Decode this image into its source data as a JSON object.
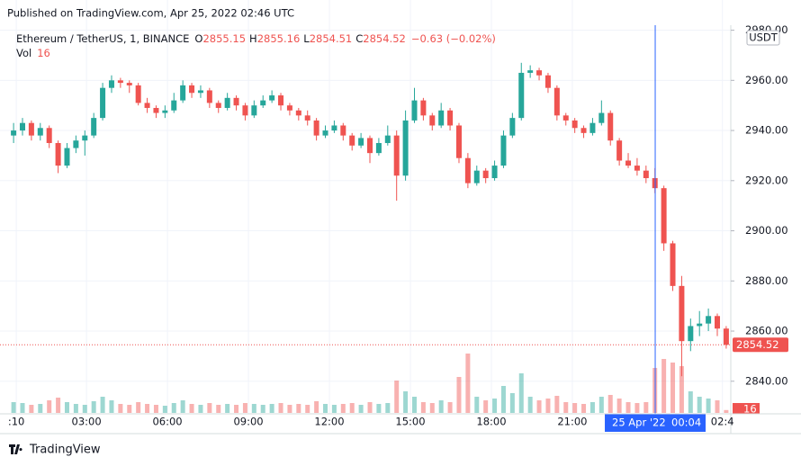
{
  "chart_data": {
    "type": "candlestick",
    "published": "Published on TradingView.com, Apr 25, 2022 02:46 UTC",
    "symbol": "Ethereum / TetherUS, 1, BINANCE",
    "legend": {
      "o_label": "O",
      "o": 2855.15,
      "h_label": "H",
      "h": 2855.16,
      "l_label": "L",
      "l": 2854.51,
      "c_label": "C",
      "c": 2854.52,
      "change": "−0.63 (−0.02%)"
    },
    "vol_label": "Vol",
    "vol_last": 16,
    "currency": "USDT",
    "last_price": 2854.52,
    "crosshair": {
      "x": 24.07,
      "date": "25 Apr '22",
      "time": "00:04"
    },
    "brand": "TradingView",
    "up_color": "#26a69a",
    "down_color": "#ef5350",
    "crosshair_color": "#2962ff",
    "grid": true,
    "xlim": [
      0.13,
      26.87
    ],
    "ylim": [
      2827,
      2982
    ],
    "volume_lim": [
      0,
      500
    ],
    "xticks": [
      {
        "value": 0.4,
        "label": ":10"
      },
      {
        "value": 3,
        "label": "03:00"
      },
      {
        "value": 6,
        "label": "06:00"
      },
      {
        "value": 9,
        "label": "09:00"
      },
      {
        "value": 12,
        "label": "12:00"
      },
      {
        "value": 15,
        "label": "15:00"
      },
      {
        "value": 18,
        "label": "18:00"
      },
      {
        "value": 21,
        "label": "21:00"
      },
      {
        "value": 26.56,
        "label": "02:4"
      }
    ],
    "yticks": [
      {
        "value": 2840,
        "label": "2840.00"
      },
      {
        "value": 2860,
        "label": "2860.00"
      },
      {
        "value": 2880,
        "label": "2880.00"
      },
      {
        "value": 2900,
        "label": "2900.00"
      },
      {
        "value": 2920,
        "label": "2920.00"
      },
      {
        "value": 2940,
        "label": "2940.00"
      },
      {
        "value": 2960,
        "label": "2960.00"
      },
      {
        "value": 2980,
        "label": "2980.00"
      }
    ],
    "x": [
      0.3,
      0.63,
      0.96,
      1.29,
      1.62,
      1.95,
      2.28,
      2.61,
      2.94,
      3.27,
      3.6,
      3.93,
      4.26,
      4.59,
      4.92,
      5.25,
      5.58,
      5.91,
      6.24,
      6.57,
      6.9,
      7.23,
      7.56,
      7.89,
      8.22,
      8.55,
      8.88,
      9.21,
      9.54,
      9.87,
      10.2,
      10.53,
      10.86,
      11.19,
      11.52,
      11.85,
      12.18,
      12.51,
      12.84,
      13.17,
      13.5,
      13.83,
      14.16,
      14.49,
      14.82,
      15.15,
      15.48,
      15.81,
      16.14,
      16.47,
      16.8,
      17.13,
      17.46,
      17.79,
      18.12,
      18.45,
      18.78,
      19.11,
      19.44,
      19.77,
      20.1,
      20.43,
      20.76,
      21.09,
      21.42,
      21.75,
      22.08,
      22.41,
      22.74,
      23.07,
      23.4,
      23.73,
      24.06,
      24.39,
      24.72,
      25.05,
      25.38,
      25.71,
      26.04,
      26.37,
      26.7
    ],
    "ohlc": [
      [
        2938,
        2943,
        2935,
        2940
      ],
      [
        2940,
        2945,
        2938,
        2943
      ],
      [
        2943,
        2944,
        2936,
        2938
      ],
      [
        2938,
        2943,
        2936,
        2941
      ],
      [
        2941,
        2942,
        2933,
        2935
      ],
      [
        2935,
        2936,
        2923,
        2926
      ],
      [
        2926,
        2935,
        2925,
        2933
      ],
      [
        2933,
        2938,
        2931,
        2936
      ],
      [
        2936,
        2940,
        2930,
        2938
      ],
      [
        2938,
        2947,
        2937,
        2945
      ],
      [
        2945,
        2959,
        2944,
        2957
      ],
      [
        2957,
        2962,
        2955,
        2960
      ],
      [
        2960,
        2961,
        2957,
        2959
      ],
      [
        2959,
        2960,
        2955,
        2958
      ],
      [
        2958,
        2959,
        2950,
        2951
      ],
      [
        2951,
        2953,
        2947,
        2949
      ],
      [
        2949,
        2950,
        2945,
        2947
      ],
      [
        2947,
        2950,
        2945,
        2948
      ],
      [
        2948,
        2955,
        2947,
        2952
      ],
      [
        2952,
        2960,
        2951,
        2958
      ],
      [
        2958,
        2959,
        2953,
        2955
      ],
      [
        2955,
        2958,
        2953,
        2956
      ],
      [
        2956,
        2957,
        2949,
        2951
      ],
      [
        2951,
        2952,
        2947,
        2949
      ],
      [
        2949,
        2955,
        2948,
        2953
      ],
      [
        2953,
        2954,
        2948,
        2950
      ],
      [
        2950,
        2951,
        2944,
        2946
      ],
      [
        2946,
        2952,
        2945,
        2950
      ],
      [
        2950,
        2954,
        2949,
        2952
      ],
      [
        2952,
        2956,
        2951,
        2954
      ],
      [
        2954,
        2955,
        2948,
        2950
      ],
      [
        2950,
        2951,
        2946,
        2948
      ],
      [
        2948,
        2949,
        2944,
        2946
      ],
      [
        2946,
        2948,
        2942,
        2944
      ],
      [
        2944,
        2945,
        2936,
        2938
      ],
      [
        2938,
        2942,
        2937,
        2940
      ],
      [
        2940,
        2944,
        2939,
        2942
      ],
      [
        2942,
        2943,
        2936,
        2938
      ],
      [
        2938,
        2939,
        2932,
        2934
      ],
      [
        2934,
        2939,
        2933,
        2937
      ],
      [
        2937,
        2938,
        2927,
        2931
      ],
      [
        2931,
        2937,
        2930,
        2935
      ],
      [
        2935,
        2942,
        2934,
        2938
      ],
      [
        2938,
        2940,
        2912,
        2922
      ],
      [
        2922,
        2948,
        2920,
        2944
      ],
      [
        2944,
        2957,
        2943,
        2952
      ],
      [
        2952,
        2953,
        2944,
        2946
      ],
      [
        2946,
        2947,
        2940,
        2942
      ],
      [
        2942,
        2951,
        2941,
        2948
      ],
      [
        2948,
        2949,
        2940,
        2942
      ],
      [
        2942,
        2943,
        2927,
        2929
      ],
      [
        2929,
        2931,
        2917,
        2919
      ],
      [
        2919,
        2926,
        2918,
        2924
      ],
      [
        2924,
        2925,
        2919,
        2921
      ],
      [
        2921,
        2928,
        2920,
        2926
      ],
      [
        2926,
        2940,
        2925,
        2938
      ],
      [
        2938,
        2947,
        2937,
        2945
      ],
      [
        2945,
        2967,
        2944,
        2963
      ],
      [
        2963,
        2966,
        2961,
        2964
      ],
      [
        2964,
        2965,
        2960,
        2962
      ],
      [
        2962,
        2963,
        2955,
        2957
      ],
      [
        2957,
        2958,
        2944,
        2946
      ],
      [
        2946,
        2947,
        2942,
        2944
      ],
      [
        2944,
        2945,
        2939,
        2941
      ],
      [
        2941,
        2942,
        2937,
        2939
      ],
      [
        2939,
        2945,
        2938,
        2943
      ],
      [
        2943,
        2952,
        2942,
        2947
      ],
      [
        2947,
        2948,
        2934,
        2936
      ],
      [
        2936,
        2937,
        2926,
        2928
      ],
      [
        2928,
        2931,
        2925,
        2926
      ],
      [
        2926,
        2929,
        2922,
        2924
      ],
      [
        2924,
        2926,
        2919,
        2921
      ],
      [
        2921,
        2925,
        2915,
        2917
      ],
      [
        2917,
        2918,
        2892,
        2895
      ],
      [
        2895,
        2896,
        2876,
        2878
      ],
      [
        2878,
        2882,
        2842,
        2856
      ],
      [
        2856,
        2865,
        2852,
        2862
      ],
      [
        2862,
        2868,
        2858,
        2863
      ],
      [
        2863,
        2869,
        2860,
        2866
      ],
      [
        2866,
        2867,
        2858,
        2861
      ],
      [
        2861,
        2862,
        2853,
        2854.52
      ]
    ],
    "volume": [
      60,
      55,
      45,
      50,
      70,
      85,
      60,
      50,
      45,
      65,
      90,
      70,
      50,
      45,
      60,
      50,
      45,
      40,
      55,
      70,
      50,
      45,
      55,
      45,
      50,
      45,
      55,
      50,
      45,
      50,
      55,
      45,
      50,
      45,
      65,
      50,
      45,
      50,
      55,
      45,
      60,
      50,
      55,
      180,
      120,
      90,
      60,
      55,
      70,
      60,
      200,
      330,
      90,
      70,
      80,
      150,
      110,
      220,
      90,
      70,
      80,
      95,
      60,
      55,
      50,
      60,
      90,
      100,
      80,
      60,
      55,
      60,
      250,
      300,
      280,
      260,
      120,
      90,
      80,
      70,
      16
    ]
  }
}
